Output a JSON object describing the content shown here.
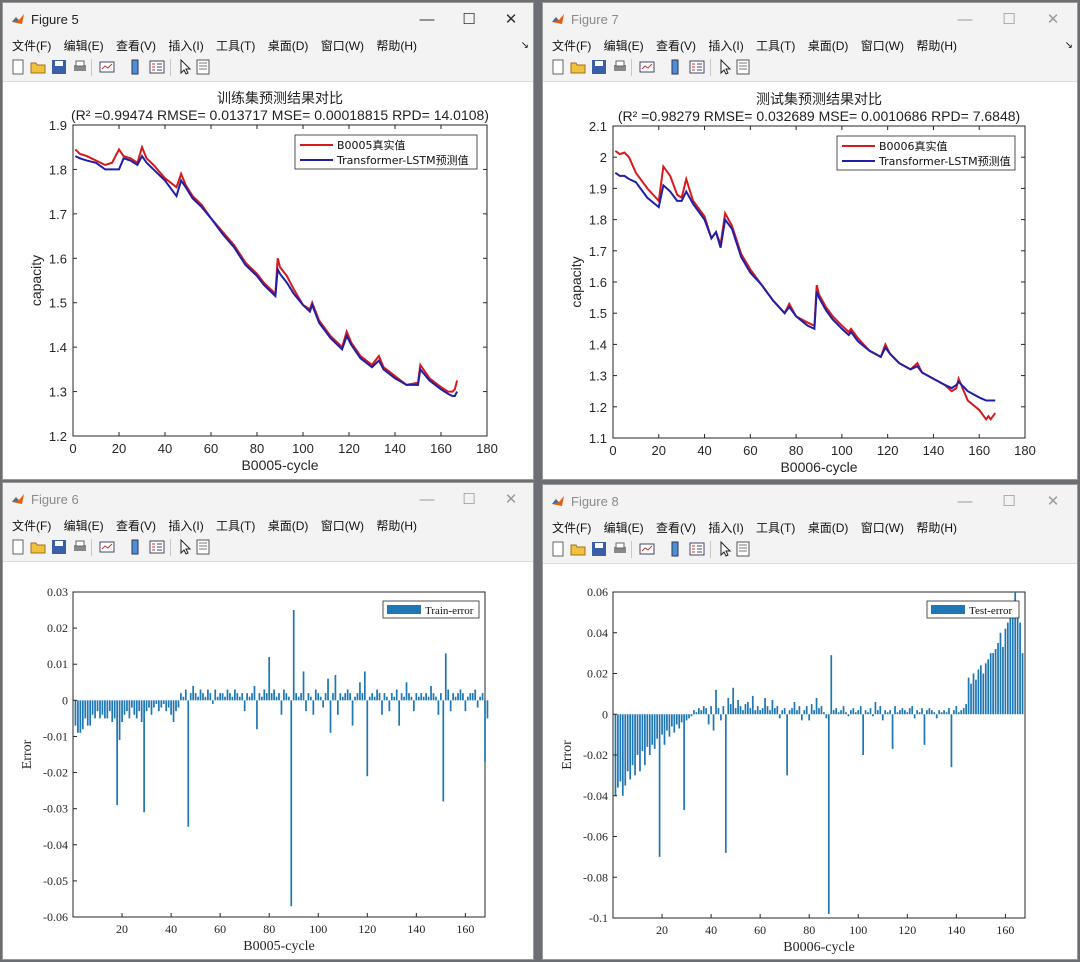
{
  "menu": [
    "文件(F)",
    "编辑(E)",
    "查看(V)",
    "插入(I)",
    "工具(T)",
    "桌面(D)",
    "窗口(W)",
    "帮助(H)"
  ],
  "menu_more": "↘",
  "window_controls": {
    "minimize": "—",
    "maximize": "☐",
    "close": "✕"
  },
  "toolbar_icons": [
    "new-figure-icon",
    "open-file-icon",
    "save-icon",
    "print-icon",
    "link-plot-icon",
    "insert-colorbar-icon",
    "insert-legend-icon",
    "pointer-icon",
    "property-editor-icon"
  ],
  "colors": {
    "real": "#d7191c",
    "pred": "#1f1fa8",
    "bar": "#1f77b4",
    "axis": "#262626"
  },
  "figures": [
    {
      "title": "Figure 5",
      "active": true
    },
    {
      "title": "Figure 7",
      "active": false
    },
    {
      "title": "Figure 6",
      "active": false
    },
    {
      "title": "Figure 8",
      "active": false
    }
  ],
  "chart_data": [
    {
      "type": "line",
      "title": "训练集预测结果对比",
      "subtitle": "(R² =0.99474 RMSE= 0.013717 MSE= 0.00018815 RPD= 14.0108)",
      "xlabel": "B0005-cycle",
      "ylabel": "capacity",
      "xlim": [
        0,
        180
      ],
      "ylim": [
        1.2,
        1.9
      ],
      "xticks": [
        0,
        20,
        40,
        60,
        80,
        100,
        120,
        140,
        160,
        180
      ],
      "yticks": [
        1.2,
        1.3,
        1.4,
        1.5,
        1.6,
        1.7,
        1.8,
        1.9
      ],
      "legend_position": "top-right",
      "grid": false,
      "series": [
        {
          "name": "B0005真实值",
          "color": "#d7191c",
          "x": [
            1,
            3,
            6,
            10,
            14,
            17,
            20,
            22,
            25,
            28,
            30,
            32,
            35,
            40,
            45,
            47,
            49,
            52,
            56,
            60,
            65,
            70,
            75,
            80,
            83,
            86,
            88,
            89,
            90,
            93,
            96,
            100,
            103,
            104,
            107,
            112,
            117,
            119,
            121,
            125,
            130,
            133,
            135,
            140,
            145,
            150,
            151,
            155,
            160,
            163,
            165,
            166,
            167
          ],
          "y": [
            1.845,
            1.835,
            1.83,
            1.82,
            1.81,
            1.815,
            1.845,
            1.83,
            1.825,
            1.815,
            1.85,
            1.825,
            1.81,
            1.78,
            1.76,
            1.79,
            1.765,
            1.74,
            1.72,
            1.69,
            1.66,
            1.63,
            1.59,
            1.565,
            1.545,
            1.53,
            1.52,
            1.6,
            1.58,
            1.56,
            1.53,
            1.495,
            1.485,
            1.5,
            1.46,
            1.425,
            1.4,
            1.435,
            1.41,
            1.38,
            1.36,
            1.38,
            1.355,
            1.335,
            1.315,
            1.32,
            1.36,
            1.33,
            1.31,
            1.3,
            1.3,
            1.305,
            1.325
          ]
        },
        {
          "name": "Transformer-LSTM预测值",
          "color": "#1f1fa8",
          "x": [
            1,
            3,
            6,
            10,
            14,
            17,
            20,
            22,
            25,
            28,
            30,
            32,
            35,
            40,
            45,
            47,
            49,
            52,
            56,
            60,
            65,
            70,
            75,
            80,
            83,
            86,
            88,
            89,
            90,
            93,
            96,
            100,
            103,
            104,
            107,
            112,
            117,
            119,
            121,
            125,
            130,
            133,
            135,
            140,
            145,
            150,
            151,
            155,
            160,
            163,
            165,
            166,
            167
          ],
          "y": [
            1.83,
            1.825,
            1.82,
            1.815,
            1.8,
            1.8,
            1.8,
            1.825,
            1.82,
            1.81,
            1.83,
            1.815,
            1.8,
            1.775,
            1.74,
            1.775,
            1.76,
            1.735,
            1.715,
            1.69,
            1.655,
            1.625,
            1.585,
            1.56,
            1.54,
            1.525,
            1.515,
            1.575,
            1.565,
            1.545,
            1.52,
            1.495,
            1.48,
            1.495,
            1.455,
            1.42,
            1.395,
            1.425,
            1.405,
            1.375,
            1.355,
            1.37,
            1.35,
            1.33,
            1.315,
            1.315,
            1.35,
            1.325,
            1.305,
            1.295,
            1.29,
            1.29,
            1.3
          ]
        }
      ]
    },
    {
      "type": "line",
      "title": "测试集预测结果对比",
      "subtitle": "(R² =0.98279 RMSE= 0.032689 MSE= 0.0010686 RPD= 7.6848)",
      "xlabel": "B0006-cycle",
      "ylabel": "capacity",
      "xlim": [
        0,
        180
      ],
      "ylim": [
        1.1,
        2.1
      ],
      "xticks": [
        0,
        20,
        40,
        60,
        80,
        100,
        120,
        140,
        160,
        180
      ],
      "yticks": [
        1.1,
        1.2,
        1.3,
        1.4,
        1.5,
        1.6,
        1.7,
        1.8,
        1.9,
        2,
        2.1
      ],
      "legend_position": "top-right",
      "grid": false,
      "series": [
        {
          "name": "B0006真实值",
          "color": "#d7191c",
          "x": [
            1,
            3,
            5,
            7,
            10,
            15,
            20,
            22,
            25,
            28,
            30,
            32,
            35,
            40,
            43,
            45,
            47,
            49,
            52,
            56,
            60,
            65,
            70,
            75,
            77,
            80,
            85,
            88,
            89,
            90,
            93,
            96,
            100,
            103,
            104,
            107,
            112,
            117,
            119,
            121,
            125,
            130,
            133,
            135,
            140,
            145,
            148,
            150,
            151,
            155,
            160,
            163,
            164,
            165,
            167
          ],
          "y": [
            2.02,
            2.01,
            2.015,
            2.0,
            1.95,
            1.9,
            1.86,
            1.97,
            1.94,
            1.88,
            1.87,
            1.93,
            1.86,
            1.81,
            1.74,
            1.76,
            1.72,
            1.82,
            1.78,
            1.69,
            1.64,
            1.59,
            1.54,
            1.5,
            1.53,
            1.49,
            1.47,
            1.46,
            1.59,
            1.56,
            1.52,
            1.49,
            1.46,
            1.44,
            1.45,
            1.42,
            1.38,
            1.36,
            1.4,
            1.37,
            1.34,
            1.32,
            1.34,
            1.31,
            1.29,
            1.27,
            1.25,
            1.26,
            1.29,
            1.22,
            1.19,
            1.16,
            1.17,
            1.16,
            1.18
          ]
        },
        {
          "name": "Transformer-LSTM预测值",
          "color": "#1f1fa8",
          "x": [
            1,
            3,
            5,
            7,
            10,
            15,
            20,
            22,
            25,
            28,
            30,
            32,
            35,
            40,
            43,
            45,
            47,
            49,
            52,
            56,
            60,
            65,
            70,
            75,
            77,
            80,
            85,
            88,
            89,
            90,
            93,
            96,
            100,
            103,
            104,
            107,
            112,
            117,
            119,
            121,
            125,
            130,
            133,
            135,
            140,
            145,
            148,
            150,
            151,
            155,
            160,
            163,
            164,
            165,
            167
          ],
          "y": [
            1.95,
            1.94,
            1.94,
            1.93,
            1.92,
            1.87,
            1.84,
            1.91,
            1.89,
            1.86,
            1.86,
            1.89,
            1.85,
            1.8,
            1.74,
            1.76,
            1.71,
            1.8,
            1.77,
            1.68,
            1.63,
            1.59,
            1.54,
            1.5,
            1.52,
            1.49,
            1.46,
            1.45,
            1.57,
            1.55,
            1.51,
            1.48,
            1.45,
            1.43,
            1.44,
            1.41,
            1.38,
            1.36,
            1.39,
            1.37,
            1.34,
            1.32,
            1.33,
            1.31,
            1.29,
            1.27,
            1.26,
            1.27,
            1.28,
            1.25,
            1.23,
            1.22,
            1.22,
            1.22,
            1.22
          ]
        }
      ]
    },
    {
      "type": "bar",
      "xlabel": "B0005-cycle",
      "ylabel": "Error",
      "xlim": [
        0,
        168
      ],
      "ylim": [
        -0.06,
        0.03
      ],
      "xticks": [
        20,
        40,
        60,
        80,
        100,
        120,
        140,
        160
      ],
      "yticks": [
        -0.06,
        -0.05,
        -0.04,
        -0.03,
        -0.02,
        -0.01,
        0,
        0.01,
        0.02,
        0.03
      ],
      "legend_position": "top-right",
      "series": [
        {
          "name": "Train-error",
          "color": "#1f77b4",
          "values": [
            -0.007,
            -0.009,
            -0.009,
            -0.008,
            -0.005,
            -0.007,
            -0.007,
            -0.004,
            -0.005,
            -0.003,
            -0.005,
            -0.004,
            -0.005,
            -0.005,
            -0.003,
            -0.006,
            -0.005,
            -0.029,
            -0.011,
            -0.006,
            -0.004,
            -0.003,
            -0.005,
            -0.002,
            -0.004,
            -0.005,
            -0.003,
            -0.006,
            -0.031,
            -0.003,
            -0.002,
            -0.004,
            -0.002,
            -0.001,
            -0.003,
            -0.002,
            -0.001,
            -0.003,
            -0.002,
            -0.004,
            -0.006,
            -0.003,
            -0.002,
            0.002,
            0.001,
            0.003,
            -0.035,
            0.002,
            0.004,
            0.002,
            0.001,
            0.003,
            0.002,
            0.001,
            0.003,
            0.002,
            -0.001,
            0.003,
            0.001,
            0.002,
            0.002,
            0.001,
            0.003,
            0.002,
            0.001,
            0.003,
            0.002,
            0.001,
            0.002,
            -0.003,
            0.002,
            0.001,
            0.002,
            0.004,
            -0.008,
            0.002,
            0.001,
            0.003,
            0.002,
            0.012,
            0.002,
            0.003,
            0.001,
            0.002,
            -0.004,
            0.003,
            0.002,
            0.001,
            -0.057,
            0.025,
            0.002,
            0.001,
            0.002,
            0.008,
            -0.003,
            0.002,
            0.001,
            -0.004,
            0.003,
            0.002,
            0.001,
            -0.002,
            0.002,
            0.006,
            -0.009,
            0.002,
            0.007,
            -0.004,
            0.002,
            0.001,
            0.002,
            0.003,
            0.002,
            -0.007,
            0.001,
            0.002,
            0.005,
            0.002,
            0.008,
            -0.021,
            0.001,
            0.002,
            0.001,
            0.003,
            0.002,
            -0.004,
            0.002,
            0.001,
            -0.003,
            0.002,
            0.001,
            0.003,
            -0.007,
            0.002,
            0.001,
            0.005,
            0.002,
            0.001,
            -0.003,
            0.002,
            0.001,
            0.002,
            0.001,
            0.002,
            0.001,
            0.004,
            0.002,
            0.001,
            -0.004,
            0.002,
            -0.028,
            0.013,
            0.003,
            -0.003,
            0.002,
            0.001,
            0.002,
            0.003,
            0.002,
            -0.003,
            0.001,
            0.002,
            0.002,
            0.003,
            -0.002,
            0.001,
            0.002,
            -0.017,
            -0.005
          ]
        }
      ]
    },
    {
      "type": "bar",
      "xlabel": "B0006-cycle",
      "ylabel": "Error",
      "xlim": [
        0,
        168
      ],
      "ylim": [
        -0.1,
        0.06
      ],
      "xticks": [
        20,
        40,
        60,
        80,
        100,
        120,
        140,
        160
      ],
      "yticks": [
        -0.1,
        -0.08,
        -0.06,
        -0.04,
        -0.02,
        0,
        0.02,
        0.04,
        0.06
      ],
      "legend_position": "top-right",
      "series": [
        {
          "name": "Test-error",
          "color": "#1f77b4",
          "values": [
            -0.04,
            -0.036,
            -0.033,
            -0.04,
            -0.035,
            -0.028,
            -0.032,
            -0.025,
            -0.03,
            -0.02,
            -0.028,
            -0.018,
            -0.025,
            -0.016,
            -0.02,
            -0.015,
            -0.017,
            -0.012,
            -0.07,
            -0.01,
            -0.015,
            -0.008,
            -0.011,
            -0.006,
            -0.009,
            -0.005,
            -0.007,
            -0.004,
            -0.047,
            -0.003,
            -0.002,
            -0.001,
            0.002,
            0.001,
            0.003,
            0.002,
            0.004,
            0.003,
            -0.005,
            0.004,
            -0.008,
            0.012,
            0.003,
            -0.003,
            0.004,
            -0.068,
            0.008,
            0.005,
            0.013,
            0.003,
            0.007,
            0.004,
            0.002,
            0.005,
            0.006,
            0.003,
            0.009,
            0.002,
            0.004,
            0.002,
            0.003,
            0.008,
            0.004,
            0.002,
            0.007,
            0.003,
            0.004,
            -0.002,
            0.002,
            0.003,
            -0.03,
            0.002,
            0.003,
            0.006,
            0.002,
            0.004,
            -0.003,
            0.002,
            0.004,
            -0.003,
            0.005,
            0.002,
            0.008,
            0.003,
            0.004,
            0.001,
            -0.002,
            -0.098,
            0.029,
            0.002,
            0.003,
            0.001,
            0.002,
            0.004,
            0.001,
            -0.001,
            0.002,
            0.003,
            0.001,
            0.002,
            0.004,
            -0.02,
            0.002,
            0.001,
            0.003,
            -0.001,
            0.006,
            0.002,
            0.004,
            -0.003,
            0.002,
            0.001,
            0.002,
            -0.017,
            0.004,
            0.001,
            0.002,
            0.003,
            0.002,
            0.001,
            0.003,
            0.004,
            -0.002,
            0.002,
            0.001,
            0.003,
            -0.015,
            0.002,
            0.003,
            0.002,
            0.001,
            -0.002,
            0.002,
            0.001,
            0.002,
            0.001,
            0.003,
            -0.026,
            0.002,
            0.004,
            0.001,
            0.002,
            0.003,
            0.005,
            0.018,
            0.015,
            0.02,
            0.017,
            0.022,
            0.024,
            0.02,
            0.025,
            0.027,
            0.03,
            0.03,
            0.032,
            0.035,
            0.04,
            0.033,
            0.042,
            0.045,
            0.05,
            0.053,
            0.06,
            0.055,
            0.045,
            0.03
          ]
        }
      ]
    }
  ]
}
